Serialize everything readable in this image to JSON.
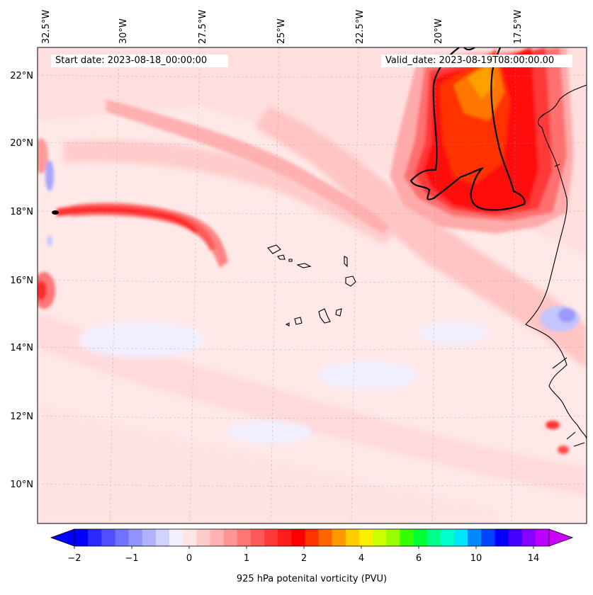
{
  "map": {
    "start_label": "Start date: 2023-08-18_00:00:00",
    "valid_label": "Valid_date: 2023-08-19T08:00:00.00",
    "lon_labels": [
      "32.5°W",
      "30°W",
      "27.5°W",
      "25°W",
      "22.5°W",
      "20°W",
      "17.5°W"
    ],
    "lat_labels": [
      "22°N",
      "20°N",
      "18°N",
      "16°N",
      "14°N",
      "12°N",
      "10°N"
    ],
    "colorbar": {
      "label": "925 hPa potenital vorticity (PVU)",
      "tick_labels": [
        "−2",
        "−1",
        "0",
        "1",
        "2",
        "4",
        "6",
        "10",
        "14"
      ],
      "colors": [
        "#0000ff",
        "#2a2aff",
        "#4f4fff",
        "#7272ff",
        "#9292ff",
        "#b2b2ff",
        "#d2d2ff",
        "#f0f0ff",
        "#ffe6e6",
        "#ffcccc",
        "#ffb2b2",
        "#ff9494",
        "#ff7676",
        "#ff5858",
        "#ff3a3a",
        "#ff1c1c",
        "#ff0000",
        "#ff3300",
        "#ff6600",
        "#ff9900",
        "#ffcc00",
        "#ffee00",
        "#ccff00",
        "#99ff00",
        "#33ff00",
        "#00ff33",
        "#00ff88",
        "#00ffcc",
        "#00e5ff",
        "#0088ff",
        "#0044ff",
        "#0000ff",
        "#4400ff",
        "#8800ff",
        "#bb00ff"
      ],
      "extend_low_color": "#0000ff",
      "extend_high_color": "#cc00ff"
    }
  }
}
